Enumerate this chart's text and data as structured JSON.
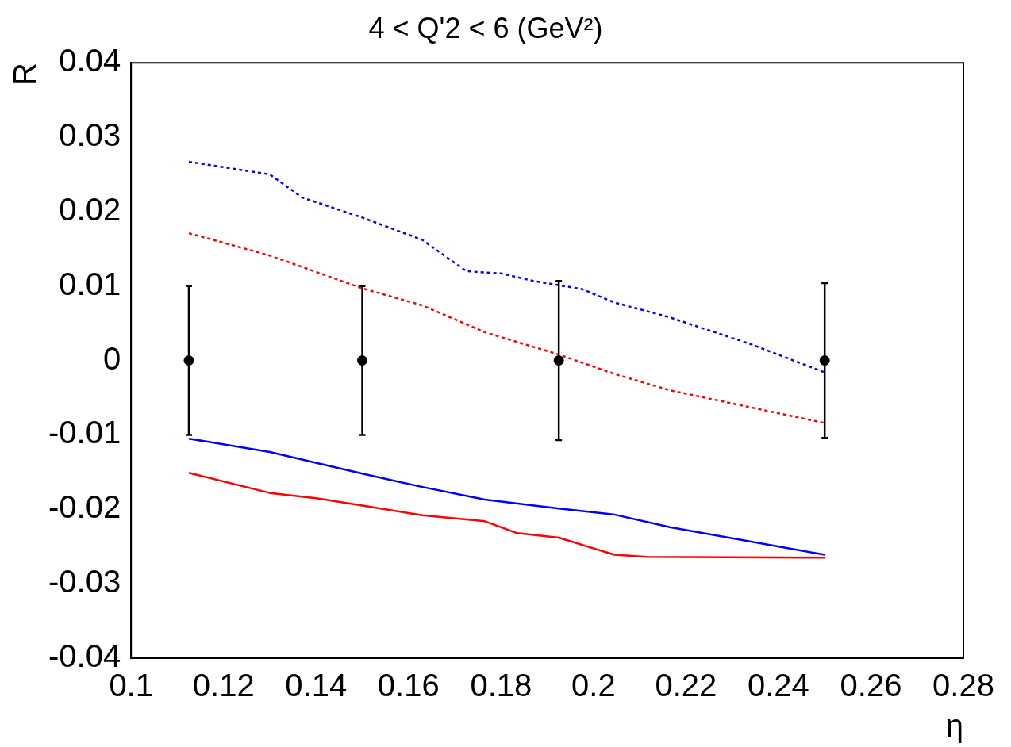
{
  "chart_data": {
    "type": "line",
    "title": "4 < Q'2 < 6 (GeV²)",
    "xlabel": "η",
    "ylabel": "R",
    "xlim": [
      0.1,
      0.28
    ],
    "xticks": [
      0.1,
      0.12,
      0.14,
      0.16,
      0.18,
      0.2,
      0.22,
      0.24,
      0.26,
      0.28
    ],
    "ylim": [
      -0.04,
      0.04
    ],
    "yticks": [
      -0.04,
      -0.03,
      -0.02,
      -0.01,
      0,
      0.01,
      0.02,
      0.03,
      0.04
    ],
    "grid": false,
    "legend": false,
    "series": [
      {
        "type": "line",
        "color": "#0000ff",
        "line_style": "dotted",
        "marker": "none",
        "x": [
          0.1125,
          0.13,
          0.137,
          0.15,
          0.163,
          0.1725,
          0.18,
          0.187,
          0.1975,
          0.2045,
          0.2165,
          0.234,
          0.25
        ],
        "values": [
          0.0267,
          0.025,
          0.0219,
          0.0192,
          0.0162,
          0.012,
          0.0117,
          0.0107,
          0.0096,
          0.0078,
          0.0058,
          0.0022,
          -0.0016
        ]
      },
      {
        "type": "line",
        "color": "#ff0000",
        "line_style": "dotted",
        "marker": "none",
        "x": [
          0.1125,
          0.13,
          0.15,
          0.163,
          0.1765,
          0.1925,
          0.2045,
          0.2165,
          0.25
        ],
        "values": [
          0.0171,
          0.0141,
          0.0097,
          0.0074,
          0.0038,
          0.0008,
          -0.0018,
          -0.004,
          -0.0084
        ]
      },
      {
        "type": "line",
        "color": "#0000ff",
        "line_style": "solid",
        "marker": "none",
        "x": [
          0.1125,
          0.13,
          0.15,
          0.163,
          0.1765,
          0.1925,
          0.2045,
          0.2165,
          0.25
        ],
        "values": [
          -0.0105,
          -0.0123,
          -0.0152,
          -0.017,
          -0.0187,
          -0.0199,
          -0.0207,
          -0.0224,
          -0.0261
        ]
      },
      {
        "type": "line",
        "color": "#ff0000",
        "line_style": "solid",
        "marker": "none",
        "x": [
          0.1125,
          0.13,
          0.14,
          0.15,
          0.163,
          0.1765,
          0.1835,
          0.1925,
          0.2045,
          0.2115,
          0.25
        ],
        "values": [
          -0.0151,
          -0.0178,
          -0.0185,
          -0.0195,
          -0.0208,
          -0.0216,
          -0.0232,
          -0.0238,
          -0.0261,
          -0.0264,
          -0.0265
        ]
      },
      {
        "type": "scatter",
        "color": "#000000",
        "marker": "circle",
        "x": [
          0.1125,
          0.15,
          0.1925,
          0.25
        ],
        "values": [
          0,
          0,
          0,
          0
        ],
        "errors": [
          0.01,
          0.01,
          0.0107,
          0.0104
        ]
      }
    ]
  }
}
